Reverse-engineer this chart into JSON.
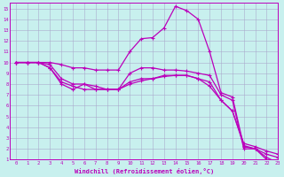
{
  "xlabel": "Windchill (Refroidissement éolien,°C)",
  "background_color": "#c8f0ee",
  "line_color": "#bb00bb",
  "grid_color": "#aaaacc",
  "xlim": [
    -0.5,
    23
  ],
  "ylim": [
    1,
    15.5
  ],
  "xticks": [
    0,
    1,
    2,
    3,
    4,
    5,
    6,
    7,
    8,
    9,
    10,
    11,
    12,
    13,
    14,
    15,
    16,
    17,
    18,
    19,
    20,
    21,
    22,
    23
  ],
  "yticks": [
    1,
    2,
    3,
    4,
    5,
    6,
    7,
    8,
    9,
    10,
    11,
    12,
    13,
    14,
    15
  ],
  "line1_x": [
    0,
    1,
    2,
    3,
    4,
    5,
    6,
    7,
    8,
    9,
    10,
    11,
    12,
    13,
    14,
    15,
    16,
    17,
    18,
    19,
    20,
    21,
    22,
    23
  ],
  "line1_y": [
    10,
    10,
    10,
    10,
    9.8,
    9.5,
    9.5,
    9.3,
    9.3,
    9.3,
    11.0,
    12.2,
    12.3,
    13.2,
    15.2,
    14.8,
    14.0,
    11.0,
    7.2,
    6.8,
    2.2,
    2.0,
    1.2,
    0.7
  ],
  "line2_x": [
    0,
    1,
    2,
    3,
    4,
    5,
    6,
    7,
    8,
    9,
    10,
    11,
    12,
    13,
    14,
    15,
    16,
    17,
    18,
    19,
    20,
    21,
    22,
    23
  ],
  "line2_y": [
    10,
    10,
    10,
    9.8,
    8.5,
    8.0,
    8.0,
    7.8,
    7.5,
    7.5,
    9.0,
    9.5,
    9.5,
    9.3,
    9.3,
    9.2,
    9.0,
    8.8,
    7.0,
    6.5,
    2.0,
    2.0,
    1.0,
    0.5
  ],
  "line3_x": [
    0,
    1,
    2,
    3,
    4,
    5,
    6,
    7,
    8,
    9,
    10,
    11,
    12,
    13,
    14,
    15,
    16,
    17,
    18,
    19,
    20,
    21,
    22,
    23
  ],
  "line3_y": [
    10,
    10,
    10,
    9.5,
    8.2,
    7.8,
    7.5,
    7.5,
    7.5,
    7.5,
    8.2,
    8.5,
    8.5,
    8.7,
    8.8,
    8.8,
    8.5,
    8.2,
    6.5,
    5.5,
    2.5,
    2.2,
    1.8,
    1.5
  ],
  "line4_x": [
    0,
    1,
    2,
    3,
    4,
    5,
    6,
    7,
    8,
    9,
    10,
    11,
    12,
    13,
    14,
    15,
    16,
    17,
    18,
    19,
    20,
    21,
    22,
    23
  ],
  "line4_y": [
    10,
    10,
    10,
    9.5,
    8.0,
    7.5,
    8.0,
    7.5,
    7.5,
    7.5,
    8.0,
    8.3,
    8.5,
    8.8,
    8.8,
    8.8,
    8.5,
    7.8,
    6.5,
    5.5,
    2.3,
    2.0,
    1.5,
    1.2
  ],
  "marker": "+"
}
